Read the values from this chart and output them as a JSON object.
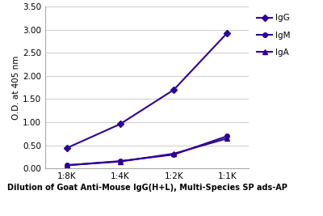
{
  "x_labels": [
    "1:8K",
    "1:4K",
    "1:2K",
    "1:1K"
  ],
  "x_positions": [
    0,
    1,
    2,
    3
  ],
  "IgG": [
    0.44,
    0.96,
    1.7,
    2.93
  ],
  "IgM": [
    0.07,
    0.16,
    0.3,
    0.7
  ],
  "IgA": [
    0.07,
    0.15,
    0.32,
    0.65
  ],
  "line_color": "#2E0099",
  "marker_IgG": "D",
  "marker_IgM": "o",
  "marker_IgA": "^",
  "ylabel": "O.D. at 405 nm",
  "xlabel": "Dilution of Goat Anti-Mouse IgG(H+L), Multi-Species SP ads-AP",
  "ylim": [
    0.0,
    3.5
  ],
  "yticks": [
    0.0,
    0.5,
    1.0,
    1.5,
    2.0,
    2.5,
    3.0,
    3.5
  ],
  "legend_labels": [
    "IgG",
    "IgM",
    "IgA"
  ],
  "axis_fontsize": 7.5,
  "xlabel_fontsize": 7.0,
  "tick_fontsize": 7.5,
  "legend_fontsize": 7.5,
  "grid_color": "#d0d0d0",
  "bg_color": "#ffffff",
  "markersize": 4,
  "linewidth": 1.5
}
